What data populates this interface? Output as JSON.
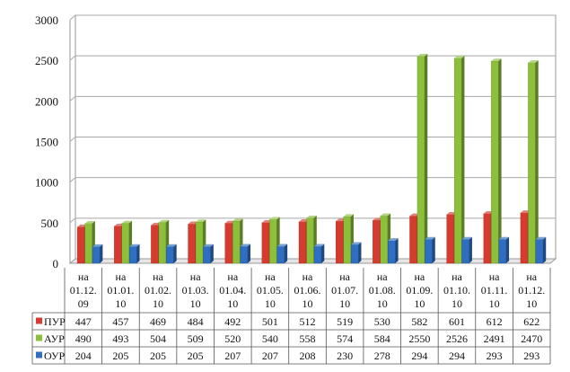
{
  "chart_data": {
    "type": "bar",
    "categories": [
      [
        "на",
        "01.12.",
        "09"
      ],
      [
        "на",
        "01.01.",
        "10"
      ],
      [
        "на",
        "01.02.",
        "10"
      ],
      [
        "на",
        "01.03.",
        "10"
      ],
      [
        "на",
        "01.04.",
        "10"
      ],
      [
        "на",
        "01.05.",
        "10"
      ],
      [
        "на",
        "01.06.",
        "10"
      ],
      [
        "на",
        "01.07.",
        "10"
      ],
      [
        "на",
        "01.08.",
        "10"
      ],
      [
        "на",
        "01.09.",
        "10"
      ],
      [
        "на",
        "01.10.",
        "10"
      ],
      [
        "на",
        "01.11.",
        "10"
      ],
      [
        "на",
        "01.12.",
        "10"
      ]
    ],
    "series": [
      {
        "name": "ПУР",
        "color": "#d73a2e",
        "values": [
          447,
          457,
          469,
          484,
          492,
          501,
          512,
          519,
          530,
          582,
          601,
          612,
          622
        ]
      },
      {
        "name": "АУР",
        "color": "#8cbf3a",
        "values": [
          490,
          493,
          504,
          509,
          520,
          540,
          558,
          574,
          584,
          2550,
          2526,
          2491,
          2470
        ]
      },
      {
        "name": "ОУР",
        "color": "#2e6fc4",
        "values": [
          204,
          205,
          205,
          205,
          207,
          207,
          208,
          230,
          278,
          294,
          294,
          293,
          293
        ]
      }
    ],
    "y_ticks": [
      "0",
      "500",
      "1000",
      "1500",
      "2000",
      "2500",
      "3000"
    ],
    "ylim": [
      0,
      3000
    ],
    "grid": true,
    "style": "3d-columns",
    "legend": "data-table-left",
    "title": "",
    "xlabel": "",
    "ylabel": ""
  }
}
